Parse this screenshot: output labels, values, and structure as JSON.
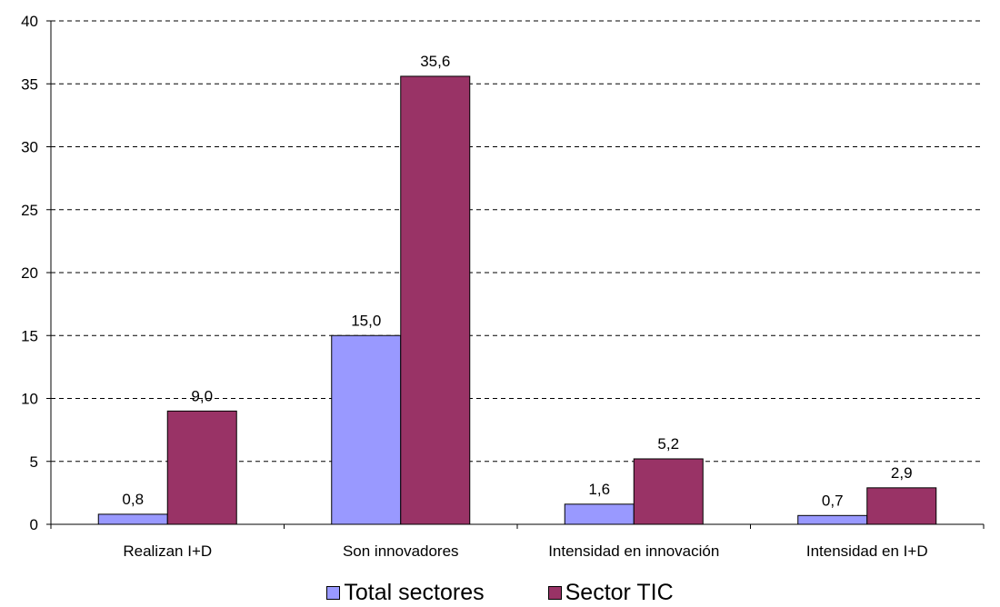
{
  "chart_data": {
    "type": "bar",
    "categories": [
      "Realizan I+D",
      "Son innovadores",
      "Intensidad en innovación",
      "Intensidad en I+D"
    ],
    "series": [
      {
        "name": "Total sectores",
        "values": [
          0.8,
          15.0,
          1.6,
          0.7
        ],
        "labels": [
          "0,8",
          "15,0",
          "1,6",
          "0,7"
        ],
        "color": "#9999ff"
      },
      {
        "name": "Sector TIC",
        "values": [
          9.0,
          35.6,
          5.2,
          2.9
        ],
        "labels": [
          "9,0",
          "35,6",
          "5,2",
          "2,9"
        ],
        "color": "#993366"
      }
    ],
    "ylim": [
      0,
      40
    ],
    "yticks": [
      0,
      5,
      10,
      15,
      20,
      25,
      30,
      35,
      40
    ],
    "grid": true,
    "legend_position": "bottom"
  }
}
